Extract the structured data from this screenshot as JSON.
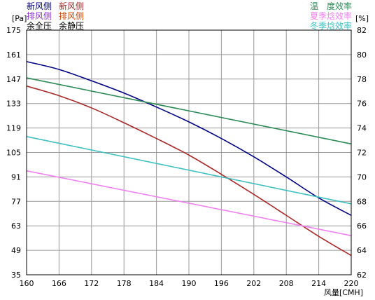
{
  "chart_data": {
    "type": "line",
    "left_axis": {
      "unit": "[Pa]",
      "ticks": [
        35,
        49,
        63,
        77,
        91,
        105,
        119,
        133,
        147,
        161,
        175
      ],
      "range": [
        35,
        175
      ]
    },
    "right_axis": {
      "unit": "[%]",
      "ticks": [
        62,
        64,
        66,
        68,
        70,
        72,
        74,
        76,
        78,
        80,
        82
      ],
      "range": [
        62,
        82
      ]
    },
    "x_axis": {
      "label": "风量[CMH]",
      "ticks": [
        160,
        166,
        172,
        178,
        184,
        190,
        196,
        202,
        208,
        214,
        220
      ],
      "range": [
        160,
        220
      ]
    },
    "grid": true,
    "legend_left": [
      {
        "label": "新风侧",
        "color": "#000080"
      },
      {
        "label": "排风侧",
        "color": "#8833cc"
      },
      {
        "label": "余全压",
        "color": "#000000"
      }
    ],
    "legend_mid": [
      {
        "label": "新风侧",
        "color": "#a52a2a"
      },
      {
        "label": "排风侧",
        "color": "#cc4400"
      },
      {
        "label": "余静压",
        "color": "#000000"
      }
    ],
    "legend_right": [
      {
        "label": "温　度效率",
        "color": "#2e8b57"
      },
      {
        "label": "夏季焓效率",
        "color": "#ee82ee"
      },
      {
        "label": "冬季焓效率",
        "color": "#40c0c0"
      }
    ],
    "series": [
      {
        "axis": "left",
        "color": "#000080",
        "x": [
          160,
          166,
          172,
          178,
          184,
          190,
          196,
          202,
          208,
          214,
          220
        ],
        "y": [
          157,
          152.5,
          146,
          139,
          131,
          122.5,
          113,
          102.5,
          91,
          79,
          69
        ]
      },
      {
        "axis": "left",
        "color": "#a52a2a",
        "x": [
          160,
          166,
          172,
          178,
          184,
          190,
          196,
          202,
          208,
          214,
          220
        ],
        "y": [
          143,
          137.5,
          130.5,
          122,
          113,
          103.5,
          92.5,
          81,
          69,
          57,
          46
        ]
      },
      {
        "axis": "right",
        "color": "#2e8b57",
        "x": [
          160,
          220
        ],
        "y": [
          78.1,
          72.7
        ]
      },
      {
        "axis": "right",
        "color": "#40c0c0",
        "x": [
          160,
          220
        ],
        "y": [
          73.3,
          67.8
        ]
      },
      {
        "axis": "right",
        "color": "#ee82ee",
        "x": [
          160,
          220
        ],
        "y": [
          70.5,
          65.2
        ]
      }
    ]
  }
}
